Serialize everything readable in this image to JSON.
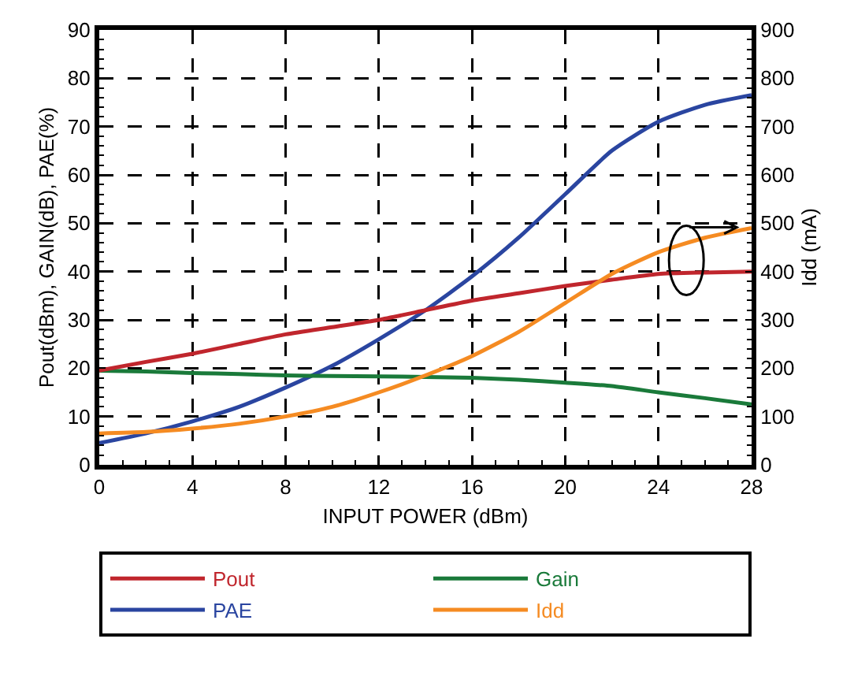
{
  "chart_data": {
    "type": "line",
    "xlabel": "INPUT POWER (dBm)",
    "ylabel": "Pout(dBm), GAIN(dB), PAE(%)",
    "y2label": "Idd (mA)",
    "x": [
      0,
      2,
      4,
      6,
      8,
      10,
      12,
      14,
      16,
      18,
      20,
      22,
      24,
      26,
      28
    ],
    "series": [
      {
        "name": "Pout",
        "color": "#c0262d",
        "values": [
          19.5,
          21.3,
          23,
          25,
          27,
          28.5,
          30,
          32,
          34,
          35.5,
          37,
          38.3,
          39.5,
          39.8,
          40
        ]
      },
      {
        "name": "Gain",
        "color": "#1a7a3a",
        "values": [
          19.5,
          19.3,
          19,
          18.8,
          18.5,
          18.4,
          18.3,
          18.2,
          18,
          17.6,
          17,
          16.3,
          15,
          13.8,
          12.5
        ]
      },
      {
        "name": "PAE",
        "color": "#2a45a0",
        "values": [
          4.5,
          6.5,
          9,
          12,
          16,
          20.5,
          26,
          32,
          39,
          47,
          56,
          65,
          71,
          74.5,
          76.5
        ]
      },
      {
        "name": "Idd",
        "color": "#f58b22",
        "axis": "y2",
        "values": [
          65,
          68,
          75,
          85,
          100,
          120,
          150,
          185,
          225,
          275,
          335,
          395,
          440,
          470,
          490
        ]
      }
    ],
    "xlim": [
      0,
      28
    ],
    "xticks": [
      0,
      4,
      8,
      12,
      16,
      20,
      24,
      28
    ],
    "ylim": [
      0,
      90
    ],
    "yticks": [
      0,
      10,
      20,
      30,
      40,
      50,
      60,
      70,
      80,
      90
    ],
    "y2lim": [
      0,
      900
    ],
    "y2ticks": [
      0,
      100,
      200,
      300,
      400,
      500,
      600,
      700,
      800,
      900
    ],
    "grid": true,
    "legend": "bottom",
    "marker": "none",
    "line_style": "solid"
  }
}
